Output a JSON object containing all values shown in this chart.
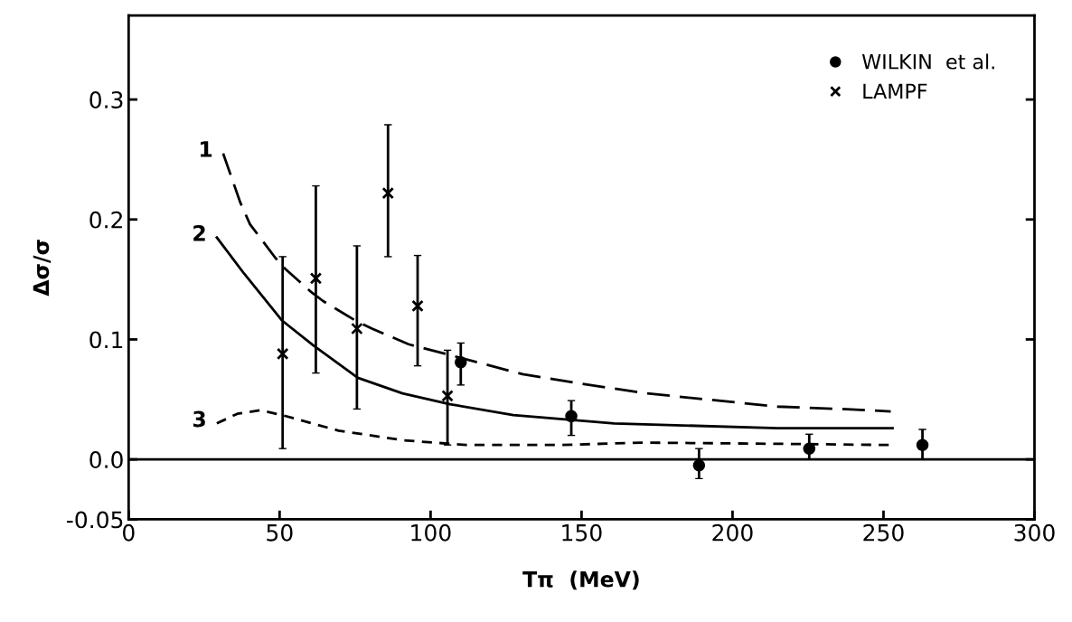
{
  "chart_data": {
    "type": "line",
    "xlabel": "Tπ  (MeV)",
    "ylabel": "Δσ/σ",
    "xlim": [
      0,
      300
    ],
    "xticks": [
      0,
      50,
      100,
      150,
      200,
      250,
      300
    ],
    "ylim": [
      -0.05,
      0.37
    ],
    "yticks": [
      {
        "value": -0.05,
        "label": "-0.05"
      },
      {
        "value": 0,
        "label": "0.0"
      },
      {
        "value": 0.1,
        "label": "0.1"
      },
      {
        "value": 0.2,
        "label": "0.2"
      },
      {
        "value": 0.3,
        "label": "0.3"
      }
    ],
    "grid": false,
    "legend": "top right",
    "ref_lines": [
      {
        "axis": "y",
        "value": 0,
        "color": "#000000"
      }
    ],
    "series": [
      {
        "name": "1",
        "line_style": "long_dashed",
        "color": "#000000",
        "x": [
          31.3,
          37,
          40.2,
          48.6,
          51.8,
          60.7,
          64.4,
          74.9,
          80.6,
          92.7,
          106.4,
          130.5,
          150,
          171.6,
          215,
          236,
          252.4
        ],
        "values": [
          0.255,
          0.214,
          0.196,
          0.168,
          0.159,
          0.139,
          0.132,
          0.116,
          0.109,
          0.096,
          0.087,
          0.071,
          0.063,
          0.055,
          0.044,
          0.042,
          0.04
        ]
      },
      {
        "name": "2",
        "line_style": "solid",
        "color": "#000000",
        "x": [
          29.2,
          38.2,
          50.7,
          61.2,
          75.9,
          90.7,
          106.4,
          127.4,
          160.8,
          215,
          253
        ],
        "values": [
          0.185,
          0.155,
          0.116,
          0.095,
          0.068,
          0.055,
          0.046,
          0.037,
          0.03,
          0.026,
          0.026
        ]
      },
      {
        "name": "3",
        "line_style": "dashed",
        "color": "#000000",
        "x": [
          29.2,
          36,
          43.5,
          50.7,
          69.5,
          90.7,
          111.7,
          143,
          170,
          215,
          252
        ],
        "values": [
          0.03,
          0.038,
          0.041,
          0.037,
          0.024,
          0.016,
          0.012,
          0.012,
          0.014,
          0.013,
          0.012
        ]
      },
      {
        "type": "scatter",
        "name": "WILKIN  et al.",
        "marker": "circle",
        "color": "#000000",
        "x": [
          110,
          146.6,
          188.9,
          225.4,
          262.9
        ],
        "values": [
          0.081,
          0.036,
          -0.005,
          0.009,
          0.012
        ],
        "errors": [
          [
            0.062,
            0.097
          ],
          [
            0.02,
            0.049
          ],
          [
            -0.016,
            0.009
          ],
          [
            0.0,
            0.021
          ],
          [
            0.0,
            0.025
          ]
        ]
      },
      {
        "type": "scatter",
        "name": "LAMPF",
        "marker": "cross",
        "color": "#000000",
        "x": [
          51,
          62,
          75.6,
          85.9,
          95.7,
          105.6
        ],
        "values": [
          0.088,
          0.151,
          0.109,
          0.222,
          0.128,
          0.053
        ],
        "errors": [
          [
            0.009,
            0.169
          ],
          [
            0.072,
            0.228
          ],
          [
            0.042,
            0.178
          ],
          [
            0.169,
            0.279
          ],
          [
            0.078,
            0.17
          ],
          [
            0.012,
            0.091
          ]
        ]
      }
    ]
  }
}
